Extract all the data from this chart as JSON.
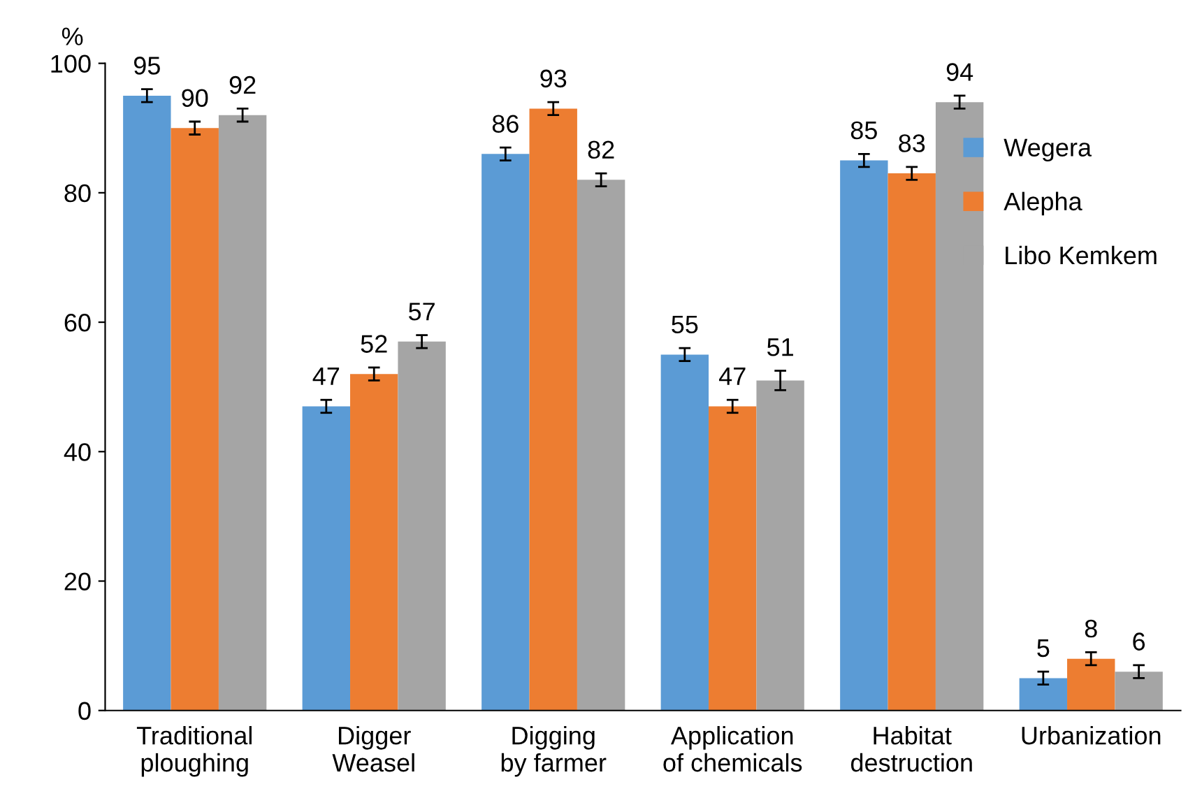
{
  "chart_data": {
    "type": "bar",
    "ylabel": "%",
    "categories": [
      "Traditional\nploughing",
      "Digger\nWeasel",
      "Digging\nby farmer",
      "Application\nof chemicals",
      "Habitat\ndestruction",
      "Urbanization"
    ],
    "series": [
      {
        "name": "Wegera",
        "color": "#5b9bd5",
        "values": [
          95,
          47,
          86,
          55,
          85,
          5
        ],
        "errors": [
          1,
          1,
          1,
          1,
          1,
          1
        ]
      },
      {
        "name": "Alepha",
        "color": "#ed7d31",
        "values": [
          90,
          52,
          93,
          47,
          83,
          8
        ],
        "errors": [
          1,
          1,
          1,
          1,
          1,
          1
        ]
      },
      {
        "name": "Libo Kemkem",
        "color": "#a5a5a5",
        "values": [
          92,
          57,
          82,
          51,
          94,
          6
        ],
        "errors": [
          1,
          1,
          1,
          1.5,
          1,
          1
        ]
      }
    ],
    "ylim": [
      0,
      100
    ],
    "yticks": [
      0,
      20,
      40,
      60,
      80,
      100
    ],
    "data_labels": true,
    "grid": false,
    "legend": "top right"
  }
}
